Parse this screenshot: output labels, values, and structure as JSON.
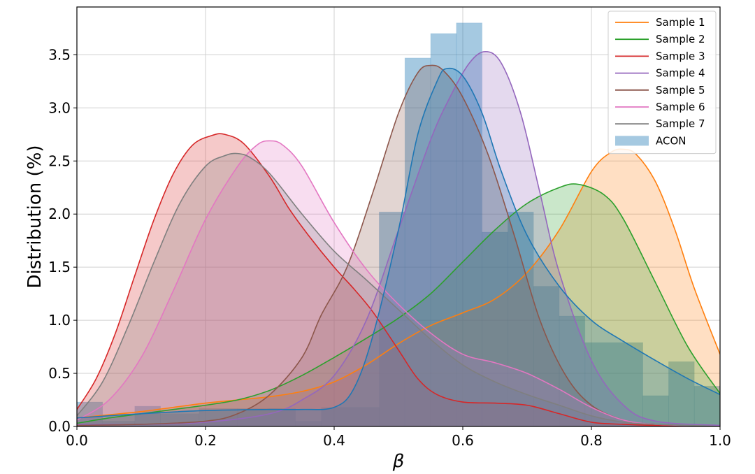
{
  "chart_data": {
    "type": "area",
    "title": "",
    "xlabel": "β",
    "ylabel": "Distribution (%)",
    "xlim": [
      0.0,
      1.0
    ],
    "ylim": [
      0.0,
      3.95
    ],
    "x_ticks": [
      0.0,
      0.2,
      0.4,
      0.6,
      0.8,
      1.0
    ],
    "x_tick_labels": [
      "0.0",
      "0.2",
      "0.4",
      "0.6",
      "0.8",
      "1.0"
    ],
    "y_ticks": [
      0.0,
      0.5,
      1.0,
      1.5,
      2.0,
      2.5,
      3.0,
      3.5
    ],
    "y_tick_labels": [
      "0.0",
      "0.5",
      "1.0",
      "1.5",
      "2.0",
      "2.5",
      "3.0",
      "3.5"
    ],
    "grid": true,
    "legend_position": "top-right",
    "histogram": {
      "name": "ACON",
      "color": "#1f77b4",
      "bins": [
        {
          "x0": 0.0,
          "x1": 0.04,
          "y": 0.23
        },
        {
          "x0": 0.04,
          "x1": 0.09,
          "y": 0.05
        },
        {
          "x0": 0.09,
          "x1": 0.13,
          "y": 0.19
        },
        {
          "x0": 0.13,
          "x1": 0.19,
          "y": 0.12
        },
        {
          "x0": 0.19,
          "x1": 0.25,
          "y": 0.17
        },
        {
          "x0": 0.25,
          "x1": 0.34,
          "y": 0.17
        },
        {
          "x0": 0.34,
          "x1": 0.38,
          "y": 0.05
        },
        {
          "x0": 0.38,
          "x1": 0.47,
          "y": 0.18
        },
        {
          "x0": 0.47,
          "x1": 0.51,
          "y": 2.02
        },
        {
          "x0": 0.51,
          "x1": 0.55,
          "y": 3.47
        },
        {
          "x0": 0.55,
          "x1": 0.59,
          "y": 3.7
        },
        {
          "x0": 0.59,
          "x1": 0.63,
          "y": 3.8
        },
        {
          "x0": 0.63,
          "x1": 0.67,
          "y": 1.83
        },
        {
          "x0": 0.67,
          "x1": 0.71,
          "y": 2.02
        },
        {
          "x0": 0.71,
          "x1": 0.75,
          "y": 1.32
        },
        {
          "x0": 0.75,
          "x1": 0.79,
          "y": 1.04
        },
        {
          "x0": 0.79,
          "x1": 0.88,
          "y": 0.79
        },
        {
          "x0": 0.88,
          "x1": 0.92,
          "y": 0.29
        },
        {
          "x0": 0.92,
          "x1": 0.96,
          "y": 0.61
        },
        {
          "x0": 0.96,
          "x1": 1.0,
          "y": 0.38
        }
      ]
    },
    "series": [
      {
        "name": "Sample 1",
        "color": "#ff7f0e",
        "x": [
          0.0,
          0.05,
          0.1,
          0.15,
          0.2,
          0.25,
          0.3,
          0.35,
          0.4,
          0.45,
          0.5,
          0.55,
          0.6,
          0.65,
          0.7,
          0.75,
          0.8,
          0.83,
          0.85,
          0.87,
          0.9,
          0.93,
          0.96,
          1.0
        ],
        "y": [
          0.08,
          0.11,
          0.14,
          0.18,
          0.22,
          0.25,
          0.28,
          0.33,
          0.42,
          0.58,
          0.78,
          0.95,
          1.07,
          1.2,
          1.45,
          1.85,
          2.4,
          2.58,
          2.61,
          2.56,
          2.3,
          1.85,
          1.3,
          0.68
        ]
      },
      {
        "name": "Sample 2",
        "color": "#2ca02c",
        "x": [
          0.0,
          0.05,
          0.1,
          0.15,
          0.2,
          0.25,
          0.3,
          0.35,
          0.4,
          0.45,
          0.5,
          0.55,
          0.6,
          0.65,
          0.7,
          0.75,
          0.78,
          0.82,
          0.85,
          0.9,
          0.95,
          1.0
        ],
        "y": [
          0.03,
          0.08,
          0.12,
          0.16,
          0.2,
          0.25,
          0.34,
          0.48,
          0.65,
          0.83,
          1.02,
          1.25,
          1.55,
          1.85,
          2.1,
          2.25,
          2.28,
          2.18,
          1.95,
          1.35,
          0.75,
          0.31
        ]
      },
      {
        "name": "Sample 3",
        "color": "#d62728",
        "x": [
          0.0,
          0.03,
          0.06,
          0.09,
          0.12,
          0.15,
          0.18,
          0.21,
          0.23,
          0.26,
          0.3,
          0.33,
          0.36,
          0.4,
          0.43,
          0.46,
          0.5,
          0.53,
          0.56,
          0.6,
          0.65,
          0.7,
          0.75,
          0.8,
          0.85,
          0.9,
          1.0
        ],
        "y": [
          0.16,
          0.45,
          0.88,
          1.42,
          1.95,
          2.38,
          2.65,
          2.74,
          2.75,
          2.66,
          2.35,
          2.05,
          1.8,
          1.5,
          1.3,
          1.08,
          0.72,
          0.45,
          0.3,
          0.23,
          0.22,
          0.2,
          0.12,
          0.04,
          0.02,
          0.01,
          0.0
        ]
      },
      {
        "name": "Sample 4",
        "color": "#9467bd",
        "x": [
          0.0,
          0.1,
          0.2,
          0.3,
          0.35,
          0.4,
          0.45,
          0.5,
          0.55,
          0.58,
          0.61,
          0.635,
          0.66,
          0.69,
          0.72,
          0.75,
          0.8,
          0.85,
          0.9,
          1.0
        ],
        "y": [
          0.02,
          0.02,
          0.04,
          0.12,
          0.25,
          0.48,
          1.0,
          1.85,
          2.7,
          3.1,
          3.42,
          3.53,
          3.42,
          2.95,
          2.2,
          1.45,
          0.62,
          0.2,
          0.05,
          0.01
        ]
      },
      {
        "name": "Sample 5",
        "color": "#8c564b",
        "x": [
          0.0,
          0.1,
          0.2,
          0.25,
          0.3,
          0.35,
          0.38,
          0.42,
          0.46,
          0.5,
          0.53,
          0.55,
          0.57,
          0.6,
          0.64,
          0.68,
          0.72,
          0.76,
          0.8,
          0.85,
          0.9,
          1.0
        ],
        "y": [
          0.01,
          0.02,
          0.05,
          0.12,
          0.3,
          0.65,
          1.05,
          1.5,
          2.2,
          2.95,
          3.33,
          3.4,
          3.35,
          3.1,
          2.55,
          1.8,
          1.0,
          0.48,
          0.2,
          0.06,
          0.02,
          0.0
        ]
      },
      {
        "name": "Sample 6",
        "color": "#e377c2",
        "x": [
          0.0,
          0.05,
          0.1,
          0.15,
          0.2,
          0.25,
          0.28,
          0.3,
          0.32,
          0.35,
          0.4,
          0.45,
          0.5,
          0.55,
          0.6,
          0.65,
          0.7,
          0.75,
          0.8,
          0.85,
          0.9,
          1.0
        ],
        "y": [
          0.06,
          0.25,
          0.65,
          1.28,
          1.95,
          2.45,
          2.65,
          2.69,
          2.65,
          2.45,
          1.92,
          1.48,
          1.15,
          0.88,
          0.68,
          0.6,
          0.5,
          0.35,
          0.18,
          0.06,
          0.02,
          0.0
        ]
      },
      {
        "name": "Sample 7",
        "color": "#7f7f7f",
        "x": [
          0.0,
          0.04,
          0.08,
          0.12,
          0.16,
          0.2,
          0.23,
          0.25,
          0.27,
          0.3,
          0.35,
          0.4,
          0.45,
          0.5,
          0.55,
          0.6,
          0.65,
          0.7,
          0.75,
          0.8,
          0.85,
          0.9,
          1.0
        ],
        "y": [
          0.1,
          0.42,
          0.95,
          1.55,
          2.1,
          2.45,
          2.55,
          2.57,
          2.53,
          2.38,
          2.0,
          1.65,
          1.38,
          1.1,
          0.82,
          0.58,
          0.42,
          0.3,
          0.2,
          0.1,
          0.04,
          0.02,
          0.0
        ]
      },
      {
        "name": "",
        "color": "#1f77b4",
        "x": [
          0.0,
          0.1,
          0.2,
          0.3,
          0.35,
          0.4,
          0.43,
          0.46,
          0.5,
          0.53,
          0.56,
          0.575,
          0.6,
          0.63,
          0.66,
          0.7,
          0.75,
          0.8,
          0.85,
          0.9,
          0.95,
          1.0
        ],
        "y": [
          0.08,
          0.12,
          0.15,
          0.16,
          0.16,
          0.18,
          0.35,
          0.85,
          1.85,
          2.75,
          3.25,
          3.37,
          3.3,
          2.95,
          2.4,
          1.8,
          1.32,
          1.0,
          0.8,
          0.62,
          0.45,
          0.3
        ]
      }
    ]
  }
}
